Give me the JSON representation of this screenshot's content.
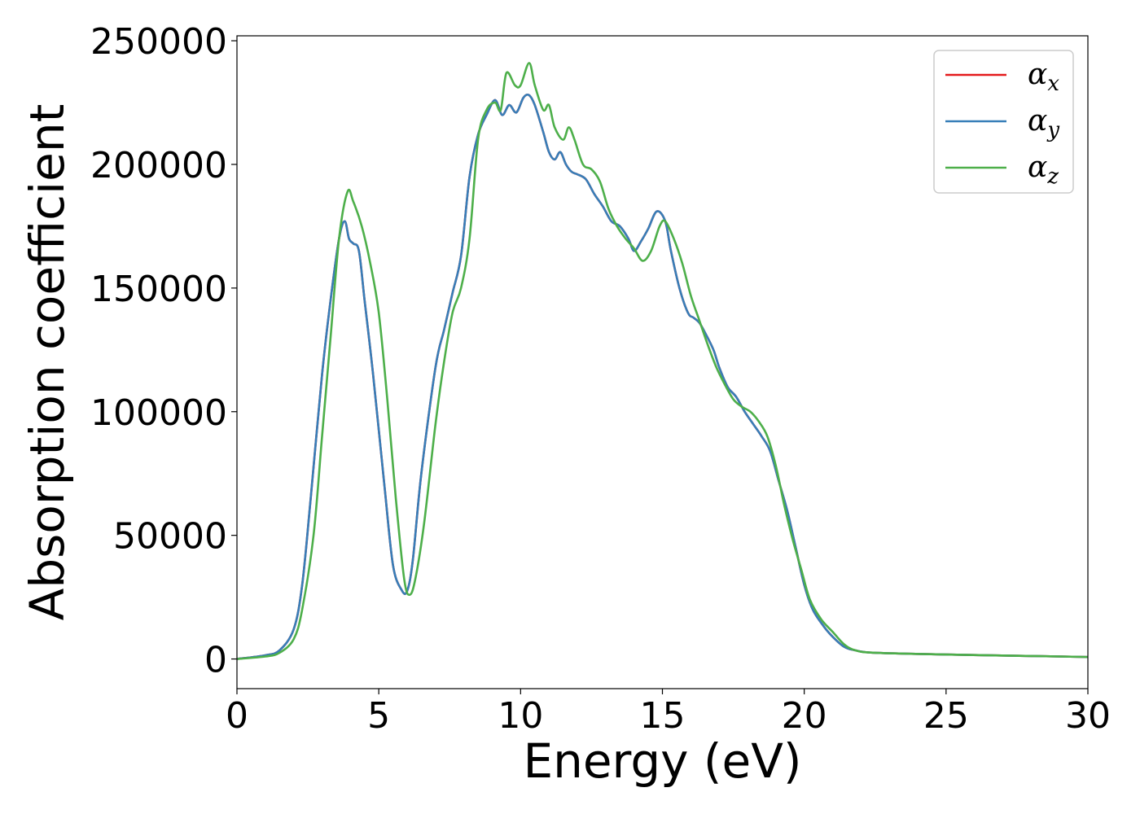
{
  "chart_data": {
    "type": "line",
    "title": "",
    "xlabel": "Energy (eV)",
    "ylabel": "Absorption coefficient",
    "xlim": [
      0,
      30
    ],
    "ylim": [
      -12000,
      252000
    ],
    "xticks": [
      0,
      5,
      10,
      15,
      20,
      25,
      30
    ],
    "yticks": [
      0,
      50000,
      100000,
      150000,
      200000,
      250000
    ],
    "grid": false,
    "legend": "top-right",
    "series": [
      {
        "name": "α",
        "subscript": "x",
        "color": "#e41a1c",
        "x": [
          0,
          1,
          1.5,
          2,
          2.3,
          2.6,
          3,
          3.3,
          3.6,
          3.8,
          3.95,
          4.1,
          4.3,
          4.5,
          4.8,
          5.2,
          5.5,
          5.8,
          6.0,
          6.2,
          6.5,
          7.0,
          7.3,
          7.6,
          7.9,
          8.2,
          8.5,
          8.8,
          9.1,
          9.35,
          9.6,
          9.85,
          10.1,
          10.3,
          10.5,
          10.8,
          11.0,
          11.2,
          11.4,
          11.6,
          11.8,
          12.0,
          12.3,
          12.6,
          12.9,
          13.2,
          13.5,
          13.8,
          14.0,
          14.25,
          14.5,
          14.8,
          15.1,
          15.3,
          15.6,
          15.9,
          16.1,
          16.3,
          16.5,
          16.8,
          17.0,
          17.3,
          17.6,
          17.9,
          18.2,
          18.5,
          18.8,
          19.1,
          19.4,
          19.7,
          20.0,
          20.3,
          20.7,
          21.0,
          21.4,
          21.8,
          22.5,
          25,
          28,
          30
        ],
        "y": [
          0,
          1500,
          3500,
          12000,
          30000,
          65000,
          115000,
          145000,
          170000,
          177000,
          170000,
          168000,
          165000,
          145000,
          115000,
          70000,
          38000,
          28000,
          27500,
          40000,
          75000,
          118000,
          133000,
          148000,
          163000,
          195000,
          212000,
          220000,
          226000,
          220000,
          224000,
          221000,
          227000,
          228000,
          224000,
          213000,
          205000,
          202000,
          205000,
          200000,
          197000,
          196000,
          194000,
          188000,
          183000,
          177000,
          175000,
          170000,
          165000,
          169000,
          174000,
          181000,
          177000,
          165000,
          150000,
          140000,
          138000,
          136000,
          132000,
          125000,
          118000,
          110000,
          106000,
          100000,
          95000,
          90000,
          84000,
          72000,
          60000,
          45000,
          30000,
          20000,
          13000,
          9000,
          5000,
          3500,
          2500,
          1800,
          1200,
          800
        ]
      },
      {
        "name": "α",
        "subscript": "y",
        "color": "#377eb8",
        "x": [
          0,
          1,
          1.5,
          2,
          2.3,
          2.6,
          3,
          3.3,
          3.6,
          3.8,
          3.95,
          4.1,
          4.3,
          4.5,
          4.8,
          5.2,
          5.5,
          5.8,
          6.0,
          6.2,
          6.5,
          7.0,
          7.3,
          7.6,
          7.9,
          8.2,
          8.5,
          8.8,
          9.1,
          9.35,
          9.6,
          9.85,
          10.1,
          10.3,
          10.5,
          10.8,
          11.0,
          11.2,
          11.4,
          11.6,
          11.8,
          12.0,
          12.3,
          12.6,
          12.9,
          13.2,
          13.5,
          13.8,
          14.0,
          14.25,
          14.5,
          14.8,
          15.1,
          15.3,
          15.6,
          15.9,
          16.1,
          16.3,
          16.5,
          16.8,
          17.0,
          17.3,
          17.6,
          17.9,
          18.2,
          18.5,
          18.8,
          19.1,
          19.4,
          19.7,
          20.0,
          20.3,
          20.7,
          21.0,
          21.4,
          21.8,
          22.5,
          25,
          28,
          30
        ],
        "y": [
          0,
          1500,
          3500,
          12000,
          30000,
          65000,
          115000,
          145000,
          170000,
          177000,
          170000,
          168000,
          165000,
          145000,
          115000,
          70000,
          38000,
          28000,
          27500,
          40000,
          75000,
          118000,
          133000,
          148000,
          163000,
          195000,
          212000,
          220000,
          226000,
          220000,
          224000,
          221000,
          227000,
          228000,
          224000,
          213000,
          205000,
          202000,
          205000,
          200000,
          197000,
          196000,
          194000,
          188000,
          183000,
          177000,
          175000,
          170000,
          165000,
          169000,
          174000,
          181000,
          177000,
          165000,
          150000,
          140000,
          138000,
          136000,
          132000,
          125000,
          118000,
          110000,
          106000,
          100000,
          95000,
          90000,
          84000,
          72000,
          60000,
          45000,
          30000,
          20000,
          13000,
          9000,
          5000,
          3500,
          2500,
          1800,
          1200,
          800
        ]
      },
      {
        "name": "α",
        "subscript": "z",
        "color": "#4daf4a",
        "x": [
          0,
          1,
          1.5,
          2,
          2.3,
          2.7,
          3.0,
          3.3,
          3.6,
          3.9,
          4.1,
          4.4,
          4.7,
          5.0,
          5.3,
          5.6,
          5.9,
          6.1,
          6.3,
          6.6,
          7.0,
          7.3,
          7.6,
          7.9,
          8.2,
          8.5,
          8.8,
          9.1,
          9.3,
          9.5,
          9.8,
          10.0,
          10.3,
          10.5,
          10.8,
          11.0,
          11.2,
          11.5,
          11.7,
          11.9,
          12.2,
          12.5,
          12.8,
          13.1,
          13.4,
          13.7,
          14.0,
          14.3,
          14.6,
          14.9,
          15.1,
          15.4,
          15.7,
          16.0,
          16.3,
          16.6,
          16.9,
          17.2,
          17.5,
          17.8,
          18.1,
          18.4,
          18.7,
          19.0,
          19.3,
          19.6,
          19.9,
          20.2,
          20.6,
          21.0,
          21.4,
          21.8,
          22.5,
          25,
          28,
          30
        ],
        "y": [
          0,
          1000,
          2500,
          8000,
          20000,
          50000,
          90000,
          130000,
          170000,
          189000,
          185000,
          175000,
          160000,
          140000,
          105000,
          65000,
          32000,
          26000,
          33000,
          55000,
          95000,
          120000,
          140000,
          150000,
          170000,
          210000,
          222000,
          225000,
          222000,
          237000,
          232000,
          232000,
          241000,
          232000,
          222000,
          224000,
          215000,
          210000,
          215000,
          210000,
          200000,
          198000,
          193000,
          182000,
          175000,
          170000,
          166000,
          161000,
          165000,
          175000,
          177000,
          170000,
          160000,
          147000,
          137000,
          127000,
          118000,
          111000,
          105000,
          102000,
          100000,
          96000,
          90000,
          78000,
          62000,
          48000,
          36000,
          24000,
          16000,
          11000,
          6000,
          3500,
          2500,
          1800,
          1200,
          800
        ]
      }
    ]
  }
}
